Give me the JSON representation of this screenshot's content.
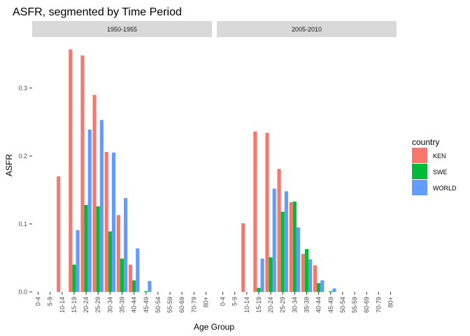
{
  "chart_data": {
    "type": "bar",
    "title": "ASFR, segmented by Time Period",
    "xlabel": "Age Group",
    "ylabel": "ASFR",
    "ylim": [
      0,
      0.375
    ],
    "y_ticks": [
      0.0,
      0.1,
      0.2,
      0.3
    ],
    "y_tick_labels": [
      "0.0",
      "0.1",
      "0.2",
      "0.3"
    ],
    "grid": false,
    "legend": {
      "title": "country",
      "position": "right"
    },
    "categories": [
      "0-4",
      "5-9",
      "10-14",
      "15-19",
      "20-24",
      "25-29",
      "30-34",
      "35-39",
      "40-44",
      "45-49",
      "50-54",
      "55-59",
      "60-69",
      "70-79",
      "80+"
    ],
    "series": [
      {
        "name": "KEN",
        "color": "#F8766D"
      },
      {
        "name": "SWE",
        "color": "#00BA38"
      },
      {
        "name": "WORLD",
        "color": "#619CFF"
      }
    ],
    "facets": [
      {
        "label": "1950-1955",
        "values": {
          "KEN": [
            0,
            0,
            0.17,
            0.357,
            0.348,
            0.29,
            0.206,
            0.113,
            0.04,
            0,
            0,
            0,
            0,
            0,
            0
          ],
          "SWE": [
            0,
            0,
            0.0,
            0.04,
            0.128,
            0.126,
            0.089,
            0.049,
            0.017,
            0.001,
            0,
            0,
            0,
            0,
            0
          ],
          "WORLD": [
            0,
            0,
            0.0,
            0.091,
            0.239,
            0.253,
            0.205,
            0.138,
            0.064,
            0.016,
            0,
            0,
            0,
            0,
            0
          ]
        }
      },
      {
        "label": "2005-2010",
        "values": {
          "KEN": [
            0,
            0,
            0.101,
            0.236,
            0.234,
            0.181,
            0.132,
            0.056,
            0.039,
            0,
            0,
            0,
            0,
            0,
            0
          ],
          "SWE": [
            0,
            0,
            0.0,
            0.006,
            0.051,
            0.118,
            0.133,
            0.063,
            0.013,
            0.001,
            0,
            0,
            0,
            0,
            0
          ],
          "WORLD": [
            0,
            0,
            0.0,
            0.049,
            0.152,
            0.148,
            0.095,
            0.048,
            0.017,
            0.005,
            0,
            0,
            0,
            0,
            0
          ]
        }
      }
    ]
  }
}
